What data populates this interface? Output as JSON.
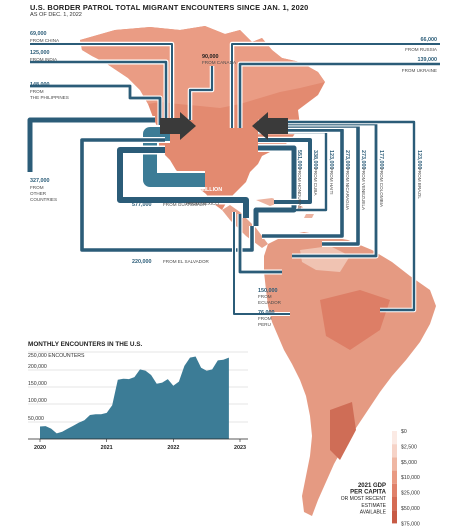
{
  "header": {
    "title": "U.S. BORDER PATROL TOTAL MIGRANT ENCOUNTERS SINCE JAN. 1, 2020",
    "subtitle": "AS OF DEC. 1, 2022"
  },
  "origins": [
    {
      "id": "china",
      "value": "69,000",
      "from": "FROM CHINA"
    },
    {
      "id": "india",
      "value": "125,000",
      "from": "FROM INDIA"
    },
    {
      "id": "philippines",
      "value": "148,000",
      "from": "FROM\nTHE PHILIPPINES"
    },
    {
      "id": "other",
      "value": "327,000",
      "from": "FROM\nOTHER\nCOUNTRIES"
    },
    {
      "id": "canada",
      "value": "90,000",
      "from": "FROM CANADA"
    },
    {
      "id": "russia",
      "value": "66,000",
      "from": "FROM RUSSIA"
    },
    {
      "id": "ukraine",
      "value": "139,000",
      "from": "FROM UKRAINE"
    },
    {
      "id": "mexico",
      "value": "1.66 MILLION",
      "from": "FROM MEXICO"
    },
    {
      "id": "guatemala",
      "value": "577,000",
      "from": "FROM GUATEMALA"
    },
    {
      "id": "elsalvador",
      "value": "220,000",
      "from": "FROM EL SALVADOR"
    },
    {
      "id": "honduras",
      "value": "551,000",
      "from": "FROM HONDURAS"
    },
    {
      "id": "cuba",
      "value": "338,000",
      "from": "FROM CUBA"
    },
    {
      "id": "haiti",
      "value": "123,000",
      "from": "FROM HAITI"
    },
    {
      "id": "nicaragua",
      "value": "273,000",
      "from": "FROM NICARAGUA"
    },
    {
      "id": "venezuela",
      "value": "273,000",
      "from": "FROM VENEZUELA"
    },
    {
      "id": "colombia",
      "value": "177,000",
      "from": "FROM COLOMBIA"
    },
    {
      "id": "brazil",
      "value": "123,000",
      "from": "FROM BRAZIL"
    },
    {
      "id": "ecuador",
      "value": "150,000",
      "from": "FROM\nECUADOR"
    },
    {
      "id": "peru",
      "value": "76,000",
      "from": "FROM\nPERU"
    }
  ],
  "monthly_chart": {
    "title": "MONTHLY ENCOUNTERS IN THE U.S.",
    "y_top_label": "250,000 ENCOUNTERS",
    "y_ticks": [
      "200,000",
      "150,000",
      "100,000",
      "50,000"
    ],
    "x_ticks": [
      "2020",
      "2021",
      "2022",
      "2023"
    ],
    "color": "#3c7c96"
  },
  "chart_data": {
    "type": "area",
    "title": "MONTHLY ENCOUNTERS IN THE U.S.",
    "ylabel": "ENCOUNTERS",
    "ylim": [
      0,
      250000
    ],
    "x": [
      "2020-01",
      "2020-02",
      "2020-03",
      "2020-04",
      "2020-05",
      "2020-06",
      "2020-07",
      "2020-08",
      "2020-09",
      "2020-10",
      "2020-11",
      "2020-12",
      "2021-01",
      "2021-02",
      "2021-03",
      "2021-04",
      "2021-05",
      "2021-06",
      "2021-07",
      "2021-08",
      "2021-09",
      "2021-10",
      "2021-11",
      "2021-12",
      "2022-01",
      "2022-02",
      "2022-03",
      "2022-04",
      "2022-05",
      "2022-06",
      "2022-07",
      "2022-08",
      "2022-09",
      "2022-10",
      "2022-11"
    ],
    "series": [
      {
        "values": [
          36000,
          37000,
          30000,
          16000,
          21000,
          30000,
          38000,
          47000,
          54000,
          69000,
          71000,
          71000,
          75000,
          97000,
          170000,
          173000,
          172000,
          178000,
          200000,
          196000,
          184000,
          159000,
          162000,
          172000,
          153000,
          165000,
          210000,
          234000,
          237000,
          205000,
          196000,
          200000,
          226000,
          228000,
          234000
        ]
      }
    ]
  },
  "legend": {
    "title": "2021 GDP\nPER CAPITA\nOR MOST RECENT\nESTIMATE\nAVAILABLE",
    "ticks": [
      "$0",
      "$2,500",
      "$5,000",
      "$10,000",
      "$25,000",
      "$50,000",
      "$75,000"
    ],
    "colors": [
      "#fbeae4",
      "#f6d3c7",
      "#efb7a3",
      "#e99a82",
      "#e0816a",
      "#d56b54",
      "#c75a45"
    ]
  },
  "colors": {
    "map_fill": "#e38a70",
    "map_light": "#f2c1b0",
    "flow": "#2b5c78",
    "flow_light": "#ffffff",
    "arrow": "#3c3c3c"
  }
}
